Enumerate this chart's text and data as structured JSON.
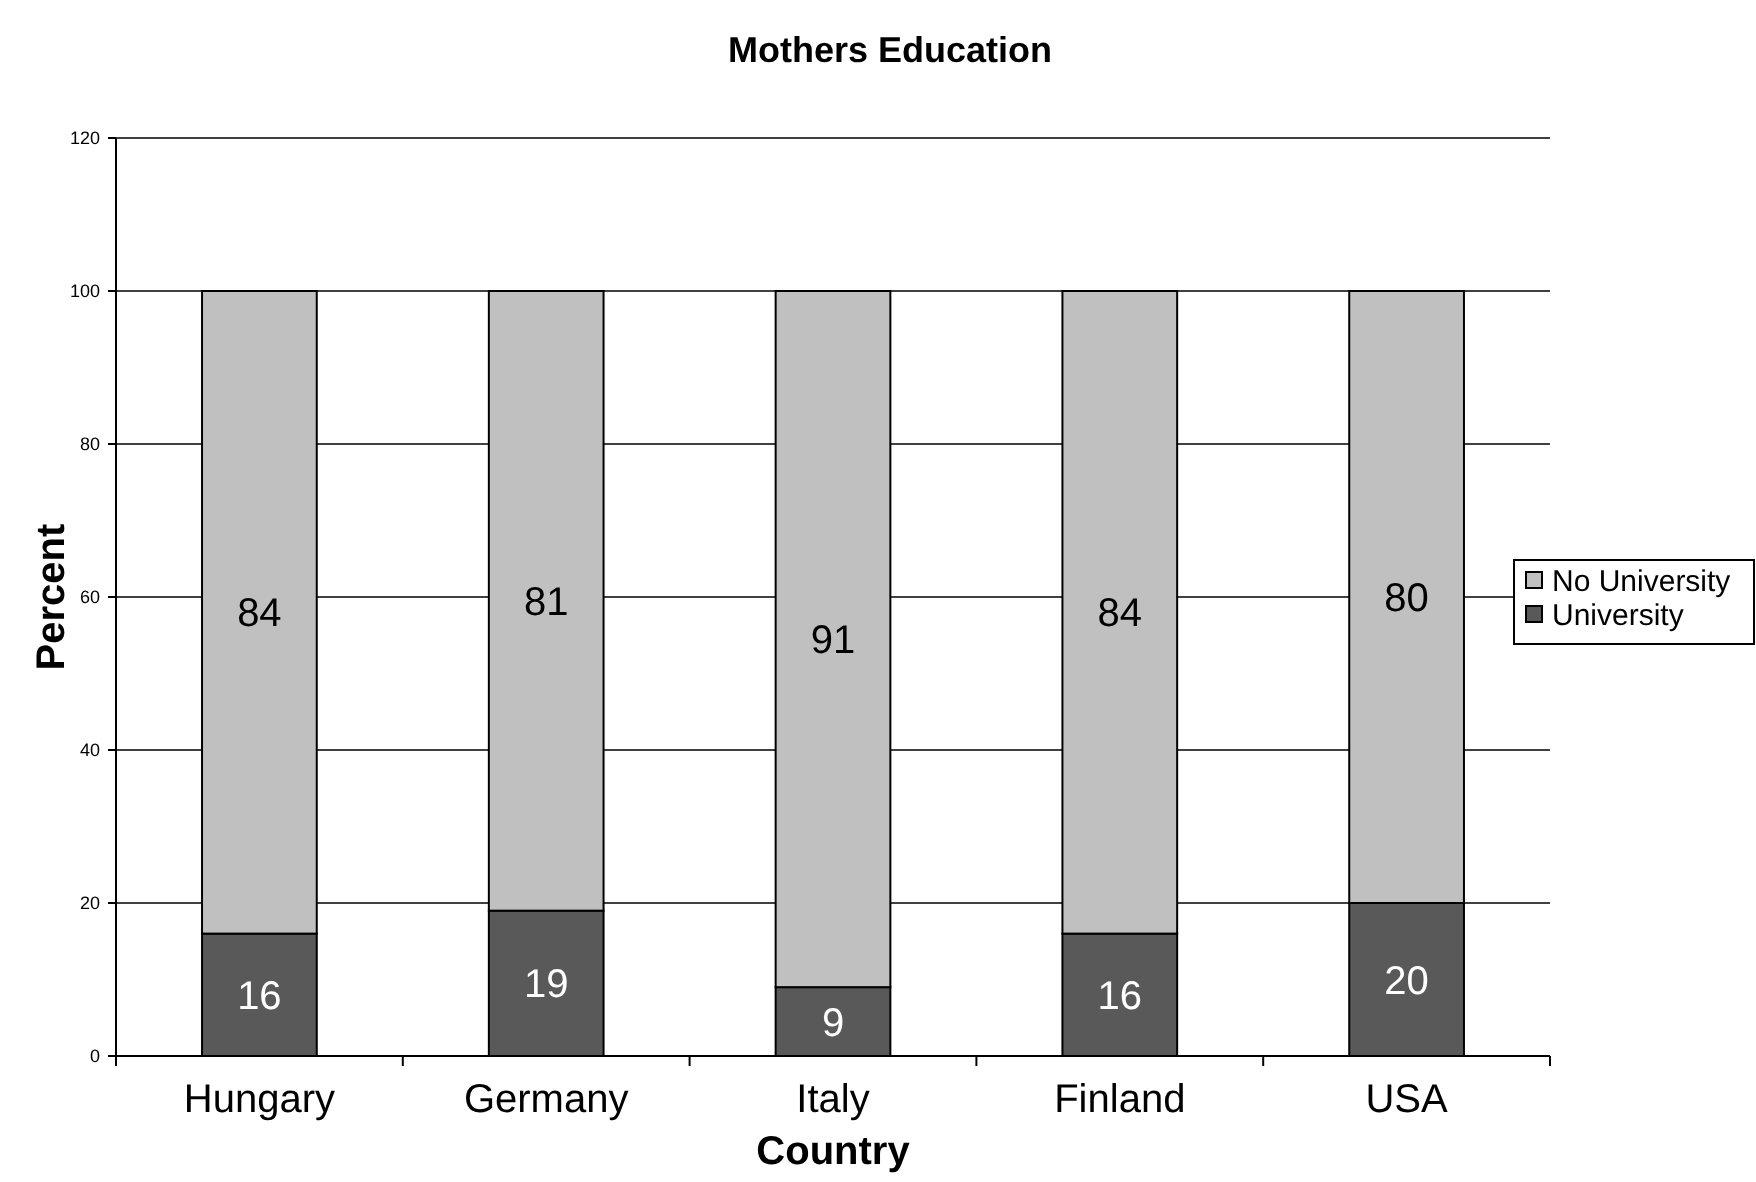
{
  "chart_data": {
    "type": "bar",
    "title": "Mothers Education",
    "xlabel": "Country",
    "ylabel": "Percent",
    "categories": [
      "Hungary",
      "Germany",
      "Italy",
      "Finland",
      "USA"
    ],
    "series": [
      {
        "name": "University",
        "color": "#595959",
        "values": [
          16,
          19,
          9,
          16,
          20
        ]
      },
      {
        "name": "No University",
        "color": "#c0c0c0",
        "values": [
          84,
          81,
          91,
          84,
          80
        ]
      }
    ],
    "stacked": true,
    "ylim": [
      0,
      120
    ],
    "yticks": [
      0,
      20,
      40,
      60,
      80,
      100,
      120
    ],
    "grid": "y",
    "legend": "right",
    "data_labels": true
  }
}
